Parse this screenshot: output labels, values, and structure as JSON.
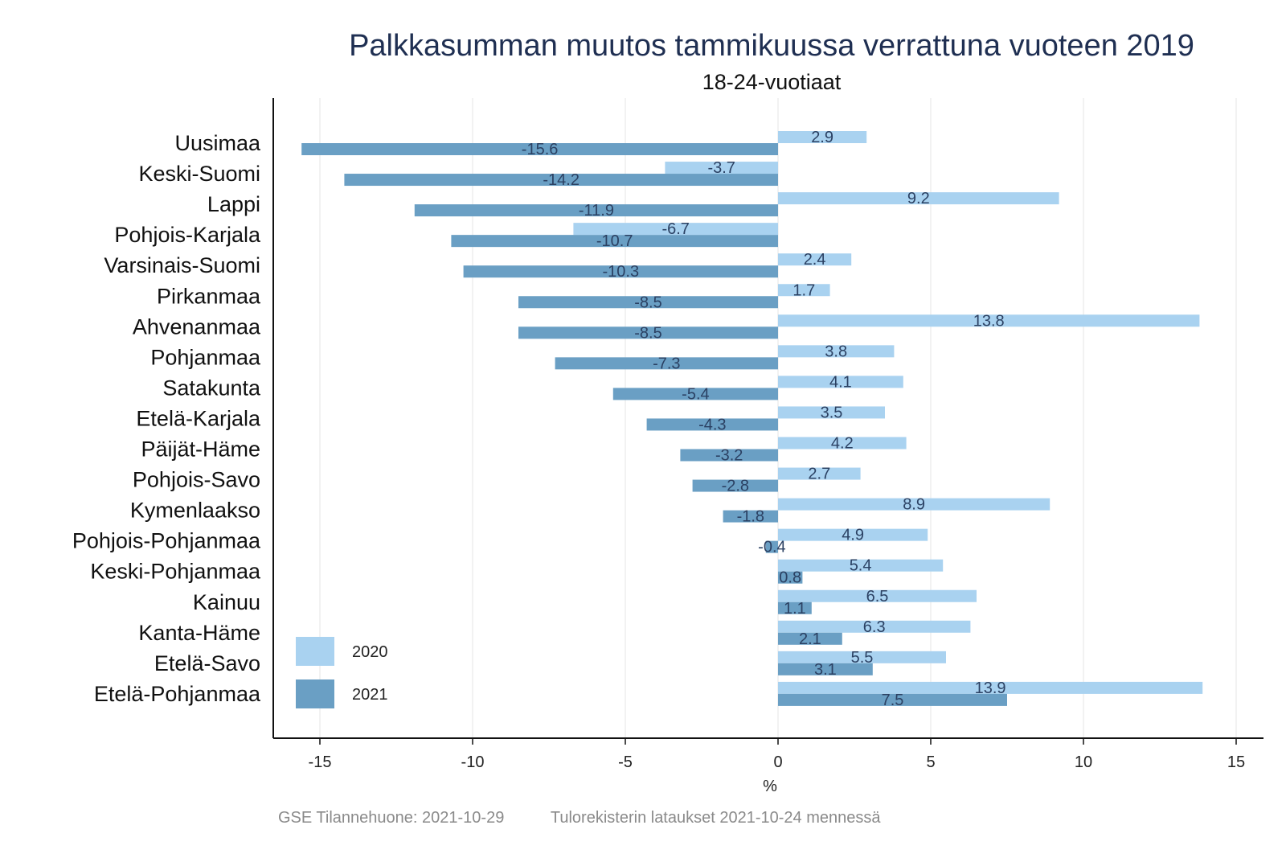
{
  "chart_data": {
    "type": "bar",
    "orientation": "horizontal",
    "title": "Palkkasumman muutos tammikuussa verrattuna vuoteen 2019",
    "subtitle": "18-24-vuotiaat",
    "xlabel": "%",
    "ylabel": "",
    "xlim": [
      -16.5,
      16
    ],
    "xticks": [
      -15,
      -10,
      -5,
      0,
      5,
      10,
      15
    ],
    "grid": "vertical",
    "legend_position": "bottom-left",
    "categories": [
      "Uusimaa",
      "Keski-Suomi",
      "Lappi",
      "Pohjois-Karjala",
      "Varsinais-Suomi",
      "Pirkanmaa",
      "Ahvenanmaa",
      "Pohjanmaa",
      "Satakunta",
      "Etelä-Karjala",
      "Päijät-Häme",
      "Pohjois-Savo",
      "Kymenlaakso",
      "Pohjois-Pohjanmaa",
      "Keski-Pohjanmaa",
      "Kainuu",
      "Kanta-Häme",
      "Etelä-Savo",
      "Etelä-Pohjanmaa"
    ],
    "series": [
      {
        "name": "2020",
        "color": "#a9d2f0",
        "values": [
          2.9,
          -3.7,
          9.2,
          -6.7,
          2.4,
          1.7,
          13.8,
          3.8,
          4.1,
          3.5,
          4.2,
          2.7,
          8.9,
          4.9,
          5.4,
          6.5,
          6.3,
          5.5,
          13.9
        ],
        "labels": [
          "2.9",
          "-3.7",
          "9.2",
          "-6.7",
          "2.4",
          "1.7",
          "13.8",
          "3.8",
          "4.1",
          "3.5",
          "4.2",
          "2.7",
          "8.9",
          "4.9",
          "5.4",
          "6.5",
          "6.3",
          "5.5",
          "13.9"
        ]
      },
      {
        "name": "2021",
        "color": "#6a9fc4",
        "values": [
          -15.6,
          -14.2,
          -11.9,
          -10.7,
          -10.3,
          -8.5,
          -8.5,
          -7.3,
          -5.4,
          -4.3,
          -3.2,
          -2.8,
          -1.8,
          -0.4,
          0.8,
          1.1,
          2.1,
          3.1,
          7.5
        ],
        "labels": [
          "-15.6",
          "-14.2",
          "-11.9",
          "-10.7",
          "-10.3",
          "-8.5",
          "-8.5",
          "-7.3",
          "-5.4",
          "-4.3",
          "-3.2",
          "-2.8",
          "-1.8",
          "-0.4",
          "0.8",
          "1.1",
          "2.1",
          "3.1",
          "7.5"
        ]
      }
    ]
  },
  "footer": {
    "date_text": "GSE Tilannehuone: 2021-10-29",
    "source_text": "Tulorekisterin lataukset 2021-10-24 mennessä"
  }
}
